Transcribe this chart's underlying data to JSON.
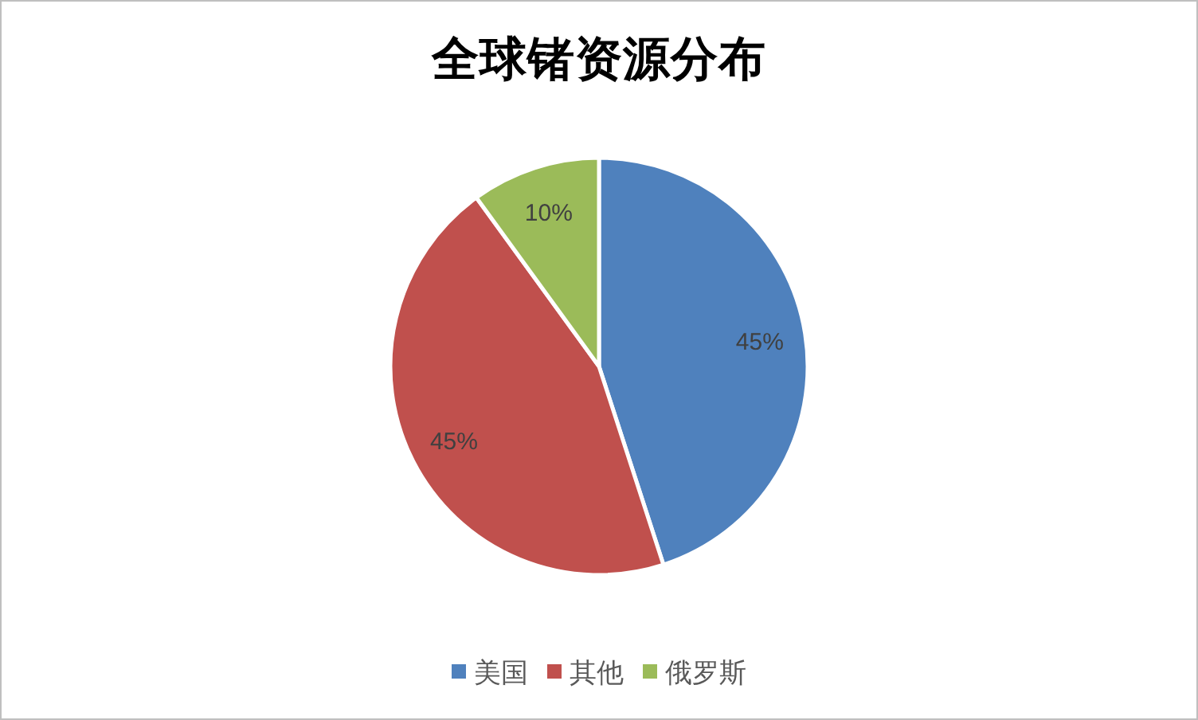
{
  "chart_data": {
    "type": "pie",
    "title": "全球锗资源分布",
    "categories": [
      "美国",
      "其他",
      "俄罗斯"
    ],
    "values": [
      45,
      45,
      10
    ],
    "colors": [
      "#4f81bd",
      "#c0504d",
      "#9bbb59"
    ],
    "value_labels": [
      "45%",
      "45%",
      "10%"
    ],
    "legend": "bottom"
  }
}
